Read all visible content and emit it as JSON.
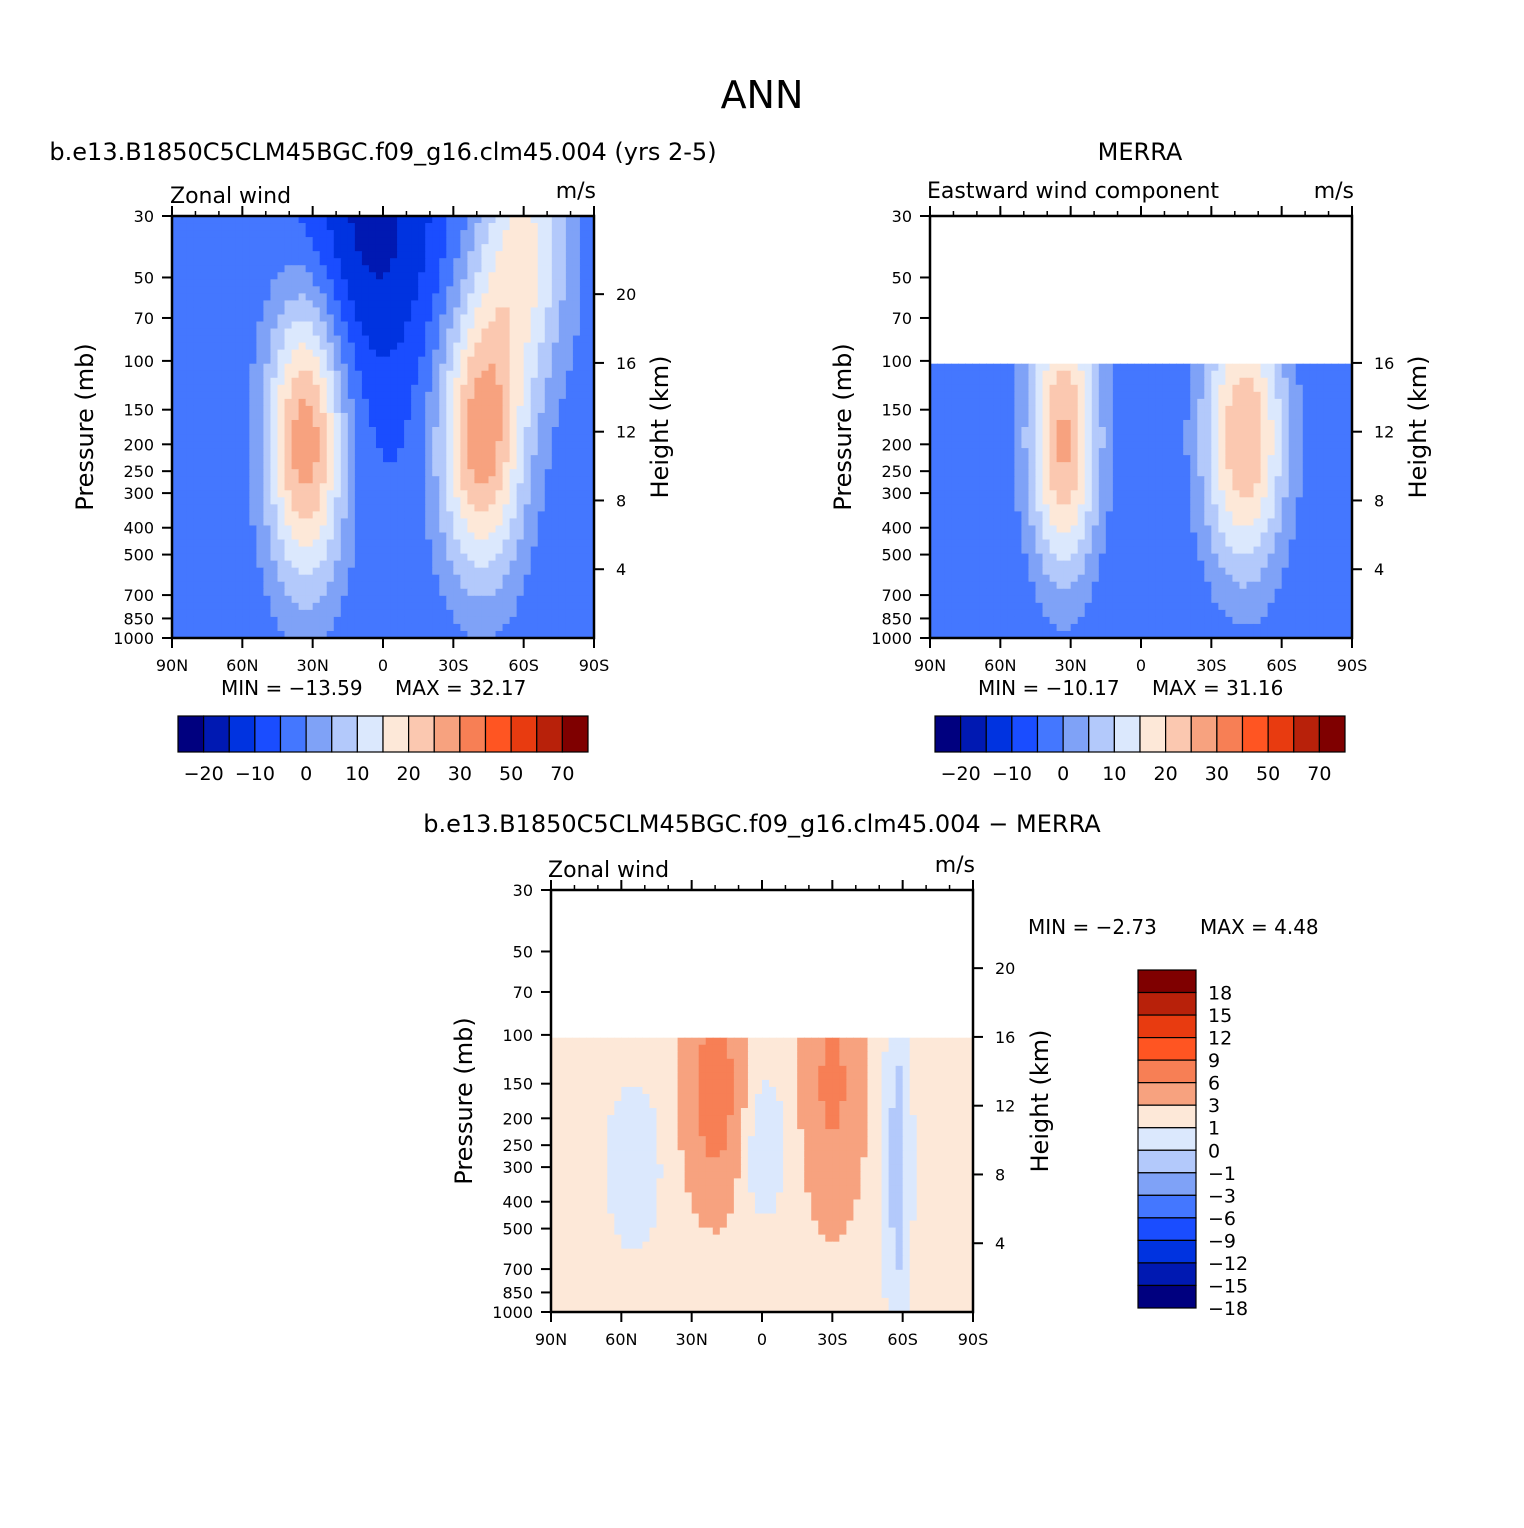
{
  "figure_title": "ANN",
  "colors": {
    "main_scale": [
      "#00007f",
      "#0019b2",
      "#0033e0",
      "#1a4dff",
      "#4477ff",
      "#7fa2f7",
      "#b3c9fb",
      "#dbe8fd",
      "#fde8d8",
      "#fbc8b0",
      "#f7a27f",
      "#f77f55",
      "#ff5522",
      "#e83b10",
      "#b8210a",
      "#7f0000"
    ],
    "diff_scale": [
      "#00007f",
      "#0019b2",
      "#0033e0",
      "#1a4dff",
      "#4477ff",
      "#7fa2f7",
      "#b3c9fb",
      "#dbe8fd",
      "#fde8d8",
      "#f7a27f",
      "#f77f55",
      "#ff5522",
      "#e83b10",
      "#b8210a",
      "#7f0000"
    ]
  },
  "chart_data": [
    {
      "type": "heatmap",
      "title": "b.e13.B1850C5CLM45BGC.f09_g16.clm45.004 (yrs 2-5)",
      "subtitle_left": "Zonal wind",
      "subtitle_right": "m/s",
      "xlabel": "",
      "ylabel": "Pressure (mb)",
      "ylabel_right": "Height (km)",
      "x_ticks": [
        "90N",
        "60N",
        "30N",
        "0",
        "30S",
        "60S",
        "90S"
      ],
      "x_range": [
        90,
        -90
      ],
      "y_ticks": [
        30,
        50,
        70,
        100,
        150,
        200,
        250,
        300,
        400,
        500,
        700,
        850,
        1000
      ],
      "y_range": [
        30,
        1000
      ],
      "y_scale": "log",
      "height_ticks": [
        20,
        16,
        12,
        8,
        4
      ],
      "data_range": [
        -20,
        100
      ],
      "jets": [
        {
          "lat": 33,
          "p": 190,
          "value": 32.17,
          "type": "westerly"
        },
        {
          "lat": -42,
          "p": 190,
          "value": 32,
          "type": "westerly"
        },
        {
          "lat": 5,
          "p": 30,
          "value": -13.59,
          "type": "easterly"
        }
      ],
      "min_label": "MIN = −13.59",
      "max_label": "MAX = 32.17",
      "min": -13.59,
      "max": 32.17,
      "colorbar_labels": [
        "−20",
        "−10",
        "0",
        "10",
        "20",
        "30",
        "50",
        "70"
      ]
    },
    {
      "type": "heatmap",
      "title": "MERRA",
      "subtitle_left": "Eastward wind component",
      "subtitle_right": "m/s",
      "xlabel": "",
      "ylabel": "Pressure (mb)",
      "ylabel_right": "Height (km)",
      "x_ticks": [
        "90N",
        "60N",
        "30N",
        "0",
        "30S",
        "60S",
        "90S"
      ],
      "x_range": [
        90,
        -90
      ],
      "y_ticks": [
        30,
        50,
        70,
        100,
        150,
        200,
        250,
        300,
        400,
        500,
        700,
        850,
        1000
      ],
      "y_range": [
        30,
        1000
      ],
      "y_scale": "log",
      "data_top": 100,
      "height_ticks": [
        16,
        12,
        8,
        4
      ],
      "jets": [
        {
          "lat": 33,
          "p": 190,
          "value": 31.16,
          "type": "westerly"
        },
        {
          "lat": -43,
          "p": 190,
          "value": 30,
          "type": "westerly"
        }
      ],
      "min_label": "MIN = −10.17",
      "max_label": "MAX = 31.16",
      "min": -10.17,
      "max": 31.16,
      "colorbar_labels": [
        "−20",
        "−10",
        "0",
        "10",
        "20",
        "30",
        "50",
        "70"
      ]
    },
    {
      "type": "heatmap",
      "title": "b.e13.B1850C5CLM45BGC.f09_g16.clm45.004 − MERRA",
      "subtitle_left": "Zonal wind",
      "subtitle_right": "m/s",
      "xlabel": "",
      "ylabel": "Pressure (mb)",
      "ylabel_right": "Height (km)",
      "x_ticks": [
        "90N",
        "60N",
        "30N",
        "0",
        "30S",
        "60S",
        "90S"
      ],
      "x_range": [
        90,
        -90
      ],
      "y_ticks": [
        30,
        50,
        70,
        100,
        150,
        200,
        250,
        300,
        400,
        500,
        700,
        850,
        1000
      ],
      "y_range": [
        30,
        1000
      ],
      "y_scale": "log",
      "data_top": 100,
      "height_ticks": [
        20,
        16,
        12,
        8,
        4
      ],
      "min_label": "MIN = −2.73",
      "max_label": "MAX = 4.48",
      "min": -2.73,
      "max": 4.48,
      "colorbar_labels": [
        "18",
        "15",
        "12",
        "9",
        "6",
        "3",
        "1",
        "0",
        "−1",
        "−3",
        "−6",
        "−9",
        "−12",
        "−15",
        "−18"
      ]
    }
  ]
}
